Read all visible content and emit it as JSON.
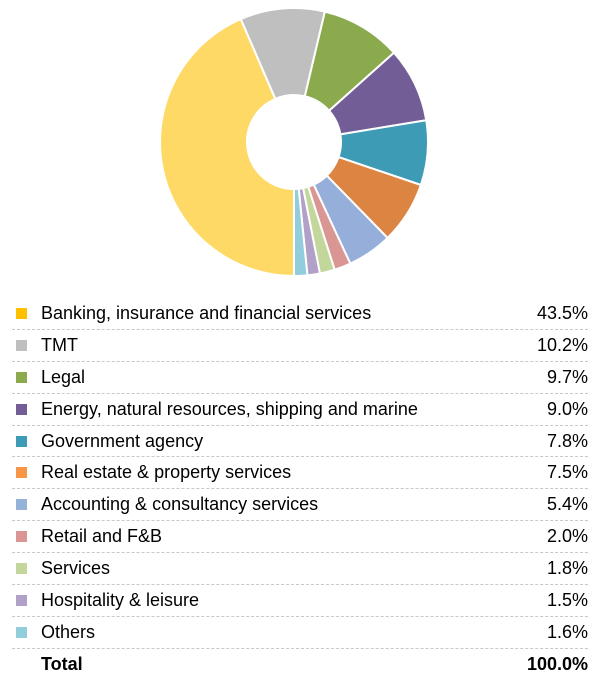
{
  "chart_data": {
    "type": "pie",
    "donut": true,
    "categories": [
      "Banking, insurance and financial services",
      "TMT",
      "Legal",
      "Energy, natural resources, shipping and marine",
      "Government agency",
      "Real estate & property services",
      "Accounting & consultancy services",
      "Retail and F&B",
      "Services",
      "Hospitality & leisure",
      "Others"
    ],
    "values": [
      43.5,
      10.2,
      9.7,
      9.0,
      7.8,
      7.5,
      5.4,
      2.0,
      1.8,
      1.5,
      1.6
    ],
    "value_labels": [
      "43.5%",
      "10.2%",
      "9.7%",
      "9.0%",
      "7.8%",
      "7.5%",
      "5.4%",
      "2.0%",
      "1.8%",
      "1.5%",
      "1.6%"
    ],
    "slice_colors": [
      "#FFD966",
      "#BFBFBF",
      "#8BAA4E",
      "#725D97",
      "#3E9BB5",
      "#DC8442",
      "#95AEDA",
      "#D99692",
      "#C3D69B",
      "#B1A0C7",
      "#92CDDC"
    ],
    "swatch_colors": [
      "#FFC000",
      "#BFBFBF",
      "#8BAA4E",
      "#725D97",
      "#3E9BB5",
      "#F79646",
      "#95B3D7",
      "#D99694",
      "#C3D69B",
      "#B1A0C7",
      "#92CDDC"
    ],
    "total_label": "Total",
    "total_value": "100.0%",
    "legend_placement": "bottom"
  }
}
